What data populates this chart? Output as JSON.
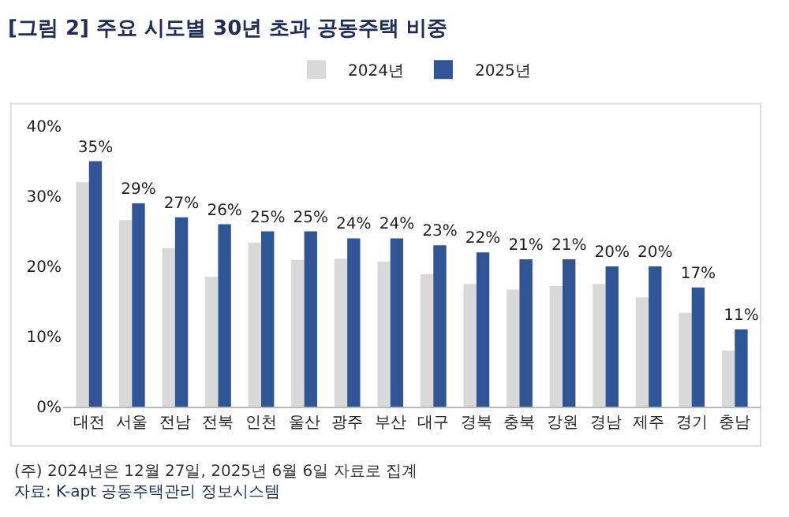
{
  "chart_data": {
    "type": "bar",
    "title": "[그림 2] 주요 시도별 30년 초과 공동주택 비중",
    "categories": [
      "대전",
      "서울",
      "전남",
      "전북",
      "인천",
      "울산",
      "광주",
      "부산",
      "대구",
      "경북",
      "충북",
      "강원",
      "경남",
      "제주",
      "경기",
      "충남"
    ],
    "series": [
      {
        "name": "2024년",
        "color": "#d9d9d9",
        "values": [
          32.0,
          26.6,
          22.6,
          18.5,
          23.4,
          20.9,
          21.1,
          20.7,
          18.9,
          17.5,
          16.7,
          17.2,
          17.5,
          15.6,
          13.4,
          8.0
        ]
      },
      {
        "name": "2025년",
        "color": "#2f5597",
        "values": [
          35,
          29,
          27,
          26,
          25,
          25,
          24,
          24,
          23,
          22,
          21,
          21,
          20,
          20,
          17,
          11
        ],
        "value_labels": [
          "35%",
          "29%",
          "27%",
          "26%",
          "25%",
          "25%",
          "24%",
          "24%",
          "23%",
          "22%",
          "21%",
          "21%",
          "20%",
          "20%",
          "17%",
          "11%"
        ]
      }
    ],
    "ylim": [
      0,
      40
    ],
    "yticks": [
      {
        "value": 0,
        "label": "0%"
      },
      {
        "value": 10,
        "label": "10%"
      },
      {
        "value": 20,
        "label": "20%"
      },
      {
        "value": 30,
        "label": "30%"
      },
      {
        "value": 40,
        "label": "40%"
      }
    ],
    "legend": "top",
    "annotations": [
      "(주) 2024년은 12월 27일, 2025년 6월 6일 자료로 집계",
      "자료: K-apt 공동주택관리 정보시스템"
    ]
  }
}
